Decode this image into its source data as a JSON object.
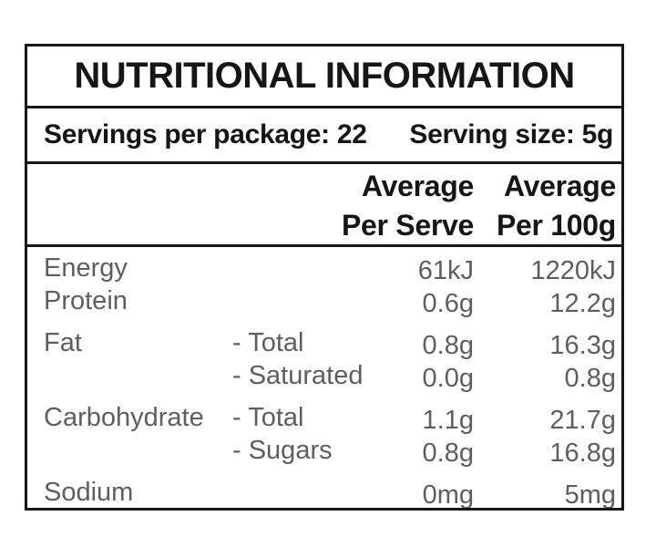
{
  "label": {
    "title": "NUTRITIONAL INFORMATION",
    "servings_line": {
      "servings_per_package": "Servings per package: 22",
      "serving_size": "Serving size: 5g"
    },
    "columns": {
      "per_serve": {
        "line1": "Average",
        "line2": "Per Serve"
      },
      "per_100g": {
        "line1": "Average",
        "line2": "Per 100g"
      }
    },
    "rows": [
      {
        "label": "Energy",
        "sublabel": "",
        "per_serve": "61kJ",
        "per_100g": "1220kJ"
      },
      {
        "label": "Protein",
        "sublabel": "",
        "per_serve": "0.6g",
        "per_100g": "12.2g"
      },
      {
        "label": "Fat",
        "sublabel": "- Total",
        "per_serve": "0.8g",
        "per_100g": "16.3g"
      },
      {
        "label": "",
        "sublabel": "- Saturated",
        "per_serve": "0.0g",
        "per_100g": "0.8g"
      },
      {
        "label": "Carbohydrate",
        "sublabel": "- Total",
        "per_serve": "1.1g",
        "per_100g": "21.7g"
      },
      {
        "label": "",
        "sublabel": "- Sugars",
        "per_serve": "0.8g",
        "per_100g": "16.8g"
      },
      {
        "label": "Sodium",
        "sublabel": "",
        "per_serve": "0mg",
        "per_100g": "5mg"
      }
    ],
    "colors": {
      "text_black": "#161616",
      "text_gray": "#5e5e5e",
      "border": "#161616",
      "background": "#ffffff"
    }
  }
}
